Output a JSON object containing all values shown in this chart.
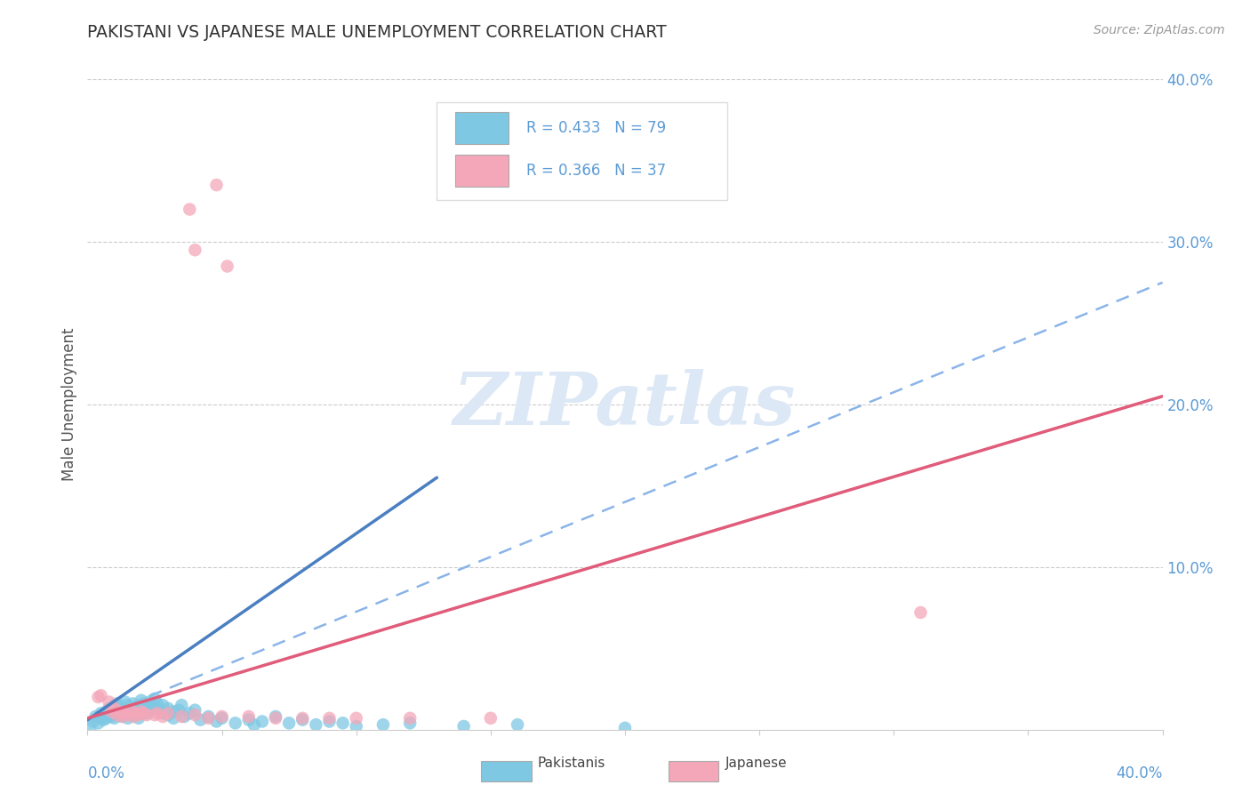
{
  "title": "PAKISTANI VS JAPANESE MALE UNEMPLOYMENT CORRELATION CHART",
  "source": "Source: ZipAtlas.com",
  "ylabel": "Male Unemployment",
  "xlim": [
    0.0,
    0.4
  ],
  "ylim": [
    0.0,
    0.4
  ],
  "pakistani_color": "#7ec8e3",
  "japanese_color": "#f4a7b9",
  "trend_pakistani_solid_color": "#4a7fc1",
  "trend_japanese_color": "#e05c7a",
  "trend_dashed_color": "#8ab4e8",
  "background_color": "#ffffff",
  "grid_color": "#cccccc",
  "ytick_color": "#5b9bd5",
  "watermark_color": "#dce8f5",
  "pakistani_points": [
    [
      0.002,
      0.005
    ],
    [
      0.003,
      0.008
    ],
    [
      0.004,
      0.004
    ],
    [
      0.005,
      0.007
    ],
    [
      0.005,
      0.01
    ],
    [
      0.006,
      0.006
    ],
    [
      0.006,
      0.009
    ],
    [
      0.007,
      0.011
    ],
    [
      0.007,
      0.007
    ],
    [
      0.008,
      0.013
    ],
    [
      0.008,
      0.009
    ],
    [
      0.009,
      0.008
    ],
    [
      0.009,
      0.012
    ],
    [
      0.01,
      0.015
    ],
    [
      0.01,
      0.01
    ],
    [
      0.01,
      0.007
    ],
    [
      0.011,
      0.016
    ],
    [
      0.011,
      0.012
    ],
    [
      0.012,
      0.014
    ],
    [
      0.012,
      0.009
    ],
    [
      0.013,
      0.013
    ],
    [
      0.013,
      0.008
    ],
    [
      0.014,
      0.017
    ],
    [
      0.014,
      0.011
    ],
    [
      0.015,
      0.015
    ],
    [
      0.015,
      0.01
    ],
    [
      0.015,
      0.007
    ],
    [
      0.016,
      0.013
    ],
    [
      0.016,
      0.009
    ],
    [
      0.017,
      0.016
    ],
    [
      0.017,
      0.012
    ],
    [
      0.018,
      0.014
    ],
    [
      0.018,
      0.009
    ],
    [
      0.019,
      0.011
    ],
    [
      0.019,
      0.007
    ],
    [
      0.02,
      0.018
    ],
    [
      0.02,
      0.013
    ],
    [
      0.021,
      0.016
    ],
    [
      0.021,
      0.011
    ],
    [
      0.022,
      0.014
    ],
    [
      0.022,
      0.01
    ],
    [
      0.023,
      0.017
    ],
    [
      0.024,
      0.015
    ],
    [
      0.025,
      0.013
    ],
    [
      0.025,
      0.019
    ],
    [
      0.026,
      0.016
    ],
    [
      0.027,
      0.012
    ],
    [
      0.028,
      0.01
    ],
    [
      0.028,
      0.015
    ],
    [
      0.03,
      0.013
    ],
    [
      0.03,
      0.009
    ],
    [
      0.032,
      0.007
    ],
    [
      0.032,
      0.011
    ],
    [
      0.034,
      0.012
    ],
    [
      0.035,
      0.015
    ],
    [
      0.036,
      0.008
    ],
    [
      0.038,
      0.01
    ],
    [
      0.04,
      0.012
    ],
    [
      0.042,
      0.006
    ],
    [
      0.045,
      0.008
    ],
    [
      0.048,
      0.005
    ],
    [
      0.05,
      0.007
    ],
    [
      0.055,
      0.004
    ],
    [
      0.06,
      0.006
    ],
    [
      0.062,
      0.003
    ],
    [
      0.065,
      0.005
    ],
    [
      0.07,
      0.008
    ],
    [
      0.075,
      0.004
    ],
    [
      0.08,
      0.006
    ],
    [
      0.085,
      0.003
    ],
    [
      0.09,
      0.005
    ],
    [
      0.095,
      0.004
    ],
    [
      0.1,
      0.002
    ],
    [
      0.11,
      0.003
    ],
    [
      0.12,
      0.004
    ],
    [
      0.14,
      0.002
    ],
    [
      0.16,
      0.003
    ],
    [
      0.2,
      0.001
    ],
    [
      0.001,
      0.001
    ]
  ],
  "japanese_points": [
    [
      0.004,
      0.02
    ],
    [
      0.005,
      0.021
    ],
    [
      0.008,
      0.017
    ],
    [
      0.009,
      0.011
    ],
    [
      0.01,
      0.013
    ],
    [
      0.011,
      0.009
    ],
    [
      0.012,
      0.011
    ],
    [
      0.013,
      0.008
    ],
    [
      0.014,
      0.01
    ],
    [
      0.015,
      0.009
    ],
    [
      0.016,
      0.012
    ],
    [
      0.017,
      0.008
    ],
    [
      0.018,
      0.01
    ],
    [
      0.019,
      0.009
    ],
    [
      0.02,
      0.011
    ],
    [
      0.021,
      0.01
    ],
    [
      0.025,
      0.009
    ],
    [
      0.028,
      0.008
    ],
    [
      0.03,
      0.01
    ],
    [
      0.035,
      0.008
    ],
    [
      0.04,
      0.009
    ],
    [
      0.045,
      0.007
    ],
    [
      0.05,
      0.008
    ],
    [
      0.06,
      0.008
    ],
    [
      0.07,
      0.007
    ],
    [
      0.08,
      0.007
    ],
    [
      0.09,
      0.007
    ],
    [
      0.1,
      0.007
    ],
    [
      0.12,
      0.007
    ],
    [
      0.15,
      0.007
    ],
    [
      0.038,
      0.32
    ],
    [
      0.048,
      0.335
    ],
    [
      0.04,
      0.295
    ],
    [
      0.052,
      0.285
    ],
    [
      0.31,
      0.072
    ],
    [
      0.022,
      0.009
    ],
    [
      0.026,
      0.01
    ]
  ],
  "pak_trend_x": [
    0.0,
    0.13
  ],
  "pak_trend_y": [
    0.006,
    0.155
  ],
  "jap_trend_x": [
    0.0,
    0.4
  ],
  "jap_trend_y": [
    0.007,
    0.205
  ],
  "dash_trend_x": [
    0.0,
    0.4
  ],
  "dash_trend_y": [
    0.005,
    0.275
  ]
}
